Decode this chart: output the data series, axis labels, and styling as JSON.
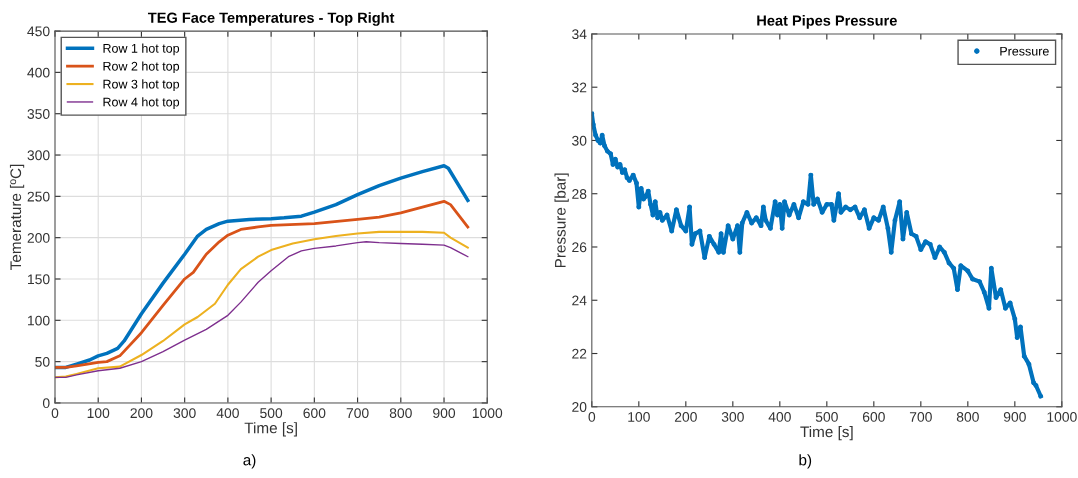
{
  "chart_data": [
    {
      "type": "line",
      "title": "TEG Face Temperatures - Top Right",
      "xlabel": "Time [s]",
      "ylabel": "Temerature [ºC]",
      "annotations": [
        "a)"
      ],
      "xlim": [
        0,
        1000
      ],
      "ylim": [
        0,
        450
      ],
      "xticks": [
        0,
        100,
        200,
        300,
        400,
        500,
        600,
        700,
        800,
        900,
        1000
      ],
      "yticks": [
        0,
        50,
        100,
        150,
        200,
        250,
        300,
        350,
        400,
        450
      ],
      "grid": true,
      "legend": "top left",
      "marker": "none",
      "line_style": "solid",
      "series": [
        {
          "name": "Row 1 hot top",
          "color": "#0072bd",
          "x": [
            0,
            25,
            50,
            80,
            100,
            120,
            145,
            160,
            200,
            250,
            300,
            330,
            350,
            380,
            400,
            450,
            500,
            530,
            570,
            600,
            650,
            700,
            750,
            800,
            850,
            900,
            910,
            955
          ],
          "values": [
            43,
            43,
            47,
            52,
            57,
            60,
            66,
            75,
            108,
            145,
            180,
            202,
            210,
            217,
            220,
            222,
            223,
            224,
            226,
            231,
            240,
            252,
            263,
            272,
            280,
            287,
            284,
            245
          ]
        },
        {
          "name": "Row 2 hot top",
          "color": "#d95319",
          "x": [
            0,
            25,
            50,
            100,
            120,
            150,
            200,
            250,
            300,
            320,
            350,
            380,
            400,
            430,
            470,
            500,
            600,
            700,
            750,
            800,
            850,
            900,
            915,
            955
          ],
          "values": [
            43,
            43,
            45,
            49,
            50,
            57,
            85,
            118,
            150,
            158,
            180,
            195,
            203,
            210,
            213,
            215,
            217,
            222,
            225,
            230,
            237,
            244,
            240,
            213
          ]
        },
        {
          "name": "Row 3 hot top",
          "color": "#edb120",
          "x": [
            0,
            25,
            50,
            100,
            150,
            200,
            250,
            300,
            330,
            370,
            400,
            430,
            470,
            500,
            550,
            600,
            650,
            700,
            750,
            800,
            850,
            900,
            915,
            955
          ],
          "values": [
            31,
            32,
            35,
            42,
            44,
            58,
            75,
            95,
            104,
            120,
            143,
            162,
            177,
            185,
            193,
            198,
            202,
            205,
            207,
            207,
            207,
            206,
            200,
            188
          ]
        },
        {
          "name": "Row 4 hot top",
          "color": "#7e2f8e",
          "x": [
            0,
            25,
            50,
            100,
            150,
            200,
            250,
            300,
            350,
            400,
            430,
            470,
            500,
            540,
            570,
            600,
            650,
            700,
            720,
            750,
            800,
            850,
            900,
            915,
            955
          ],
          "values": [
            31,
            31,
            34,
            39,
            42,
            50,
            62,
            76,
            89,
            106,
            122,
            146,
            160,
            177,
            184,
            187,
            190,
            194,
            195,
            194,
            193,
            192,
            191,
            188,
            177
          ]
        }
      ]
    },
    {
      "type": "line",
      "title": "Heat Pipes Pressure",
      "xlabel": "Time [s]",
      "ylabel": "Pressure [bar]",
      "annotations": [
        "b)"
      ],
      "xlim": [
        0,
        1000
      ],
      "ylim": [
        20,
        34
      ],
      "xticks": [
        0,
        100,
        200,
        300,
        400,
        500,
        600,
        700,
        800,
        900,
        1000
      ],
      "yticks": [
        20,
        22,
        24,
        26,
        28,
        30,
        32,
        34
      ],
      "grid": false,
      "legend": "top right",
      "marker": "circle",
      "line_style": "solid",
      "series": [
        {
          "name": "Pressure",
          "color": "#0072bd",
          "x": [
            0,
            3,
            8,
            13,
            18,
            22,
            27,
            33,
            40,
            45,
            50,
            55,
            60,
            65,
            70,
            75,
            80,
            88,
            95,
            100,
            105,
            110,
            115,
            120,
            125,
            130,
            135,
            140,
            145,
            150,
            160,
            170,
            180,
            190,
            200,
            208,
            213,
            220,
            230,
            240,
            250,
            260,
            270,
            275,
            280,
            290,
            300,
            310,
            315,
            320,
            330,
            340,
            350,
            360,
            365,
            370,
            380,
            390,
            395,
            400,
            405,
            410,
            420,
            430,
            440,
            450,
            460,
            466,
            472,
            480,
            490,
            500,
            510,
            515,
            525,
            530,
            540,
            550,
            560,
            570,
            580,
            590,
            600,
            610,
            620,
            630,
            637,
            645,
            655,
            662,
            670,
            680,
            690,
            700,
            710,
            720,
            730,
            740,
            750,
            760,
            770,
            778,
            785,
            800,
            810,
            825,
            835,
            845,
            850,
            860,
            870,
            880,
            890,
            900,
            905,
            912,
            920,
            930,
            940,
            945,
            955
          ],
          "values": [
            31.0,
            30.6,
            30.2,
            30.0,
            29.9,
            30.2,
            29.8,
            29.6,
            29.5,
            29.1,
            29.3,
            29.0,
            29.1,
            28.8,
            28.9,
            28.6,
            28.5,
            28.7,
            28.4,
            27.5,
            28.2,
            27.8,
            27.9,
            28.1,
            27.6,
            27.2,
            27.7,
            27.1,
            27.3,
            27.0,
            27.2,
            26.6,
            27.4,
            26.8,
            26.6,
            27.5,
            26.1,
            26.5,
            26.6,
            25.6,
            26.4,
            26.1,
            25.8,
            26.5,
            25.8,
            26.8,
            26.3,
            26.8,
            25.8,
            26.9,
            27.3,
            26.9,
            27.1,
            26.8,
            27.5,
            27.0,
            26.7,
            27.7,
            27.2,
            27.6,
            26.7,
            27.7,
            27.2,
            27.6,
            27.1,
            27.7,
            27.6,
            28.7,
            27.6,
            27.8,
            27.3,
            27.6,
            27.6,
            27.0,
            28.0,
            27.3,
            27.5,
            27.4,
            27.5,
            27.1,
            27.4,
            26.7,
            27.1,
            27.0,
            27.5,
            26.7,
            25.8,
            27.0,
            27.7,
            26.3,
            27.3,
            26.5,
            26.4,
            25.9,
            26.2,
            26.1,
            25.6,
            26.0,
            25.8,
            25.4,
            25.2,
            24.4,
            25.3,
            25.1,
            24.8,
            24.7,
            24.3,
            23.7,
            25.2,
            24.1,
            24.4,
            23.7,
            23.9,
            23.3,
            22.6,
            23.0,
            21.9,
            21.6,
            20.9,
            20.8,
            20.4
          ]
        }
      ]
    }
  ]
}
